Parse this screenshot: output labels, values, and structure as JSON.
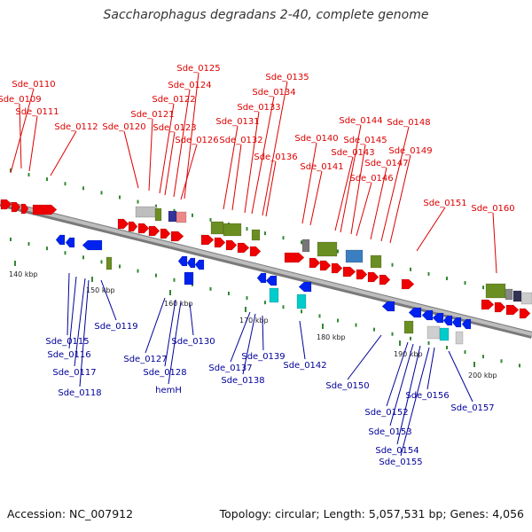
{
  "title": "Saccharophagus degradans 2-40, complete genome",
  "accession": "Accession: NC_007912",
  "summary": "Topology: circular; Length: 5,057,531 bp; Genes: 4,056",
  "ruler": [
    "140 kbp",
    "150 kbp",
    "160 kbp",
    "170 kbp",
    "180 kbp",
    "190 kbp",
    "200 kbp"
  ],
  "plus_labels": [
    "Sde_0110",
    "Sde_0109",
    "Sde_0111",
    "Sde_0112",
    "Sde_0120",
    "Sde_0121",
    "Sde_0122",
    "Sde_0125",
    "Sde_0124",
    "Sde_0123",
    "Sde_0126",
    "Sde_0131",
    "Sde_0132",
    "Sde_0133",
    "Sde_0134",
    "Sde_0135",
    "Sde_0136",
    "Sde_0140",
    "Sde_0141",
    "Sde_0143",
    "Sde_0144",
    "Sde_0145",
    "Sde_0146",
    "Sde_0147",
    "Sde_0148",
    "Sde_0149",
    "Sde_0151",
    "Sde_0160"
  ],
  "minus_labels": [
    "Sde_0115",
    "Sde_0116",
    "Sde_0117",
    "Sde_0118",
    "Sde_0119",
    "Sde_0127",
    "Sde_0128",
    "hemH",
    "Sde_0130",
    "Sde_0137",
    "Sde_0138",
    "Sde_0139",
    "Sde_0142",
    "Sde_0150",
    "Sde_0152",
    "Sde_0153",
    "Sde_0154",
    "Sde_0155",
    "Sde_0156",
    "Sde_0157"
  ],
  "colors": {
    "plus_gene": "#ee0000",
    "minus_gene": "#0022ee",
    "plus_label": "#dd0000",
    "minus_label": "#000099",
    "backbone": "#999999",
    "tick": "#338833",
    "feature_green": "#6b8e23"
  }
}
